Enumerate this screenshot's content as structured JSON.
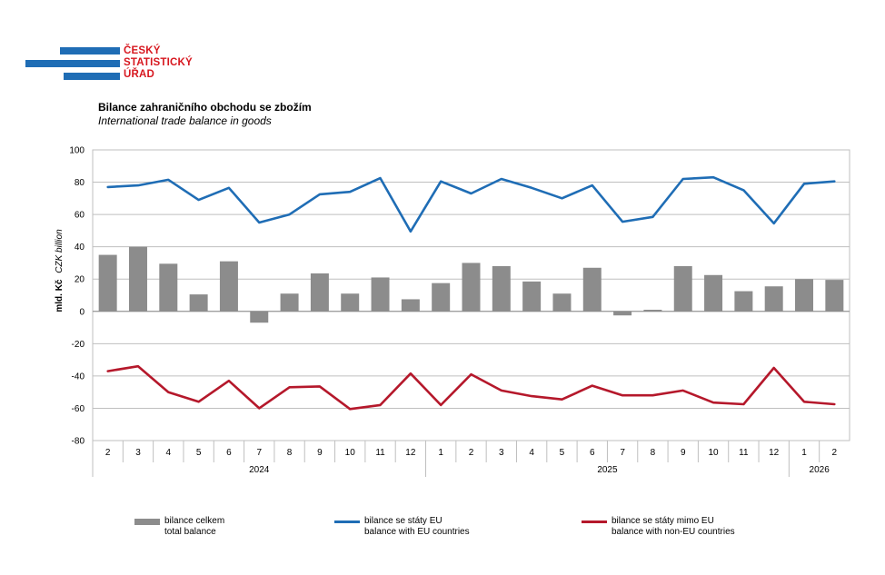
{
  "header": {
    "logo_lines": [
      "ČESKÝ",
      "STATISTICKÝ",
      "ÚŘAD"
    ],
    "title_cz": "Bilance zahraničního obchodu se zbožím",
    "title_en": "International trade balance in goods"
  },
  "colors": {
    "brand_blue": "#1f6db5",
    "brand_red": "#d7171f",
    "bar": "#8c8c8c",
    "eu_line": "#1f6db5",
    "non_eu_line": "#b5182b"
  },
  "chart_data": {
    "type": "bar",
    "ylabel_cz": "mld. Kč",
    "ylabel_en": "CZK billion",
    "ylim": [
      -80,
      100
    ],
    "ytick_step": 20,
    "grid": true,
    "categories": [
      "2",
      "3",
      "4",
      "5",
      "6",
      "7",
      "8",
      "9",
      "10",
      "11",
      "12",
      "1",
      "2",
      "3",
      "4",
      "5",
      "6",
      "7",
      "8",
      "9",
      "10",
      "11",
      "12",
      "1",
      "2"
    ],
    "years": [
      {
        "label": "2024",
        "start": 0,
        "end": 10
      },
      {
        "label": "2025",
        "start": 11,
        "end": 22
      },
      {
        "label": "2026",
        "start": 23,
        "end": 24
      }
    ],
    "series": [
      {
        "name": "bilance celkem",
        "name_en": "total balance",
        "kind": "bar",
        "values": [
          35,
          40,
          29.5,
          10.5,
          31,
          -7,
          11,
          23.5,
          11,
          21,
          7.5,
          17.5,
          30,
          28,
          18.5,
          11,
          27,
          -2.5,
          1,
          28,
          22.5,
          12.5,
          15.5,
          20,
          19.5
        ]
      },
      {
        "name": "bilance se státy EU",
        "name_en": "balance with EU countries",
        "kind": "line",
        "values": [
          77,
          78,
          81.5,
          69,
          76.5,
          55,
          60,
          72.5,
          74,
          82.5,
          49.5,
          80.5,
          73,
          82,
          76.5,
          70,
          78,
          55.5,
          58.5,
          82,
          83,
          75,
          54.5,
          79,
          80.5
        ]
      },
      {
        "name": "bilance se státy mimo EU",
        "name_en": "balance with non-EU countries",
        "kind": "line",
        "values": [
          -37,
          -34,
          -50,
          -56,
          -43,
          -60,
          -47,
          -46.5,
          -60.5,
          -58,
          -38.5,
          -58,
          -39,
          -49,
          -52.5,
          -54.5,
          -46,
          -52,
          -52,
          -49,
          -56.5,
          -57.5,
          -35,
          -56,
          -57.5
        ]
      }
    ]
  }
}
